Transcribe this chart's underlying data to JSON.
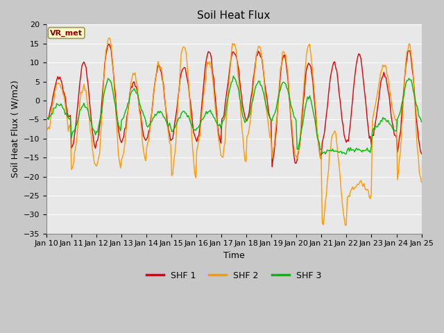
{
  "title": "Soil Heat Flux",
  "xlabel": "Time",
  "ylabel": "Soil Heat Flux ( W/m2)",
  "ylim": [
    -35,
    20
  ],
  "yticks": [
    -35,
    -30,
    -25,
    -20,
    -15,
    -10,
    -5,
    0,
    5,
    10,
    15,
    20
  ],
  "xtick_labels": [
    "Jan 10",
    "Jan 11",
    "Jan 12",
    "Jan 13",
    "Jan 14",
    "Jan 15",
    "Jan 16",
    "Jan 17",
    "Jan 18",
    "Jan 19",
    "Jan 20",
    "Jan 21",
    "Jan 22",
    "Jan 23",
    "Jan 24",
    "Jan 25"
  ],
  "series_colors": [
    "#dd0000",
    "#ff9900",
    "#00bb00"
  ],
  "series_labels": [
    "SHF 1",
    "SHF 2",
    "SHF 3"
  ],
  "vr_met_text": "VR_met",
  "vr_met_color": "#8B0000",
  "vr_met_bg": "#ffffcc",
  "vr_met_edge": "#999944",
  "fig_bg": "#c8c8c8",
  "plot_bg": "#e8e8e8",
  "grid_color": "#ffffff",
  "linewidth": 1.0,
  "title_fontsize": 11,
  "label_fontsize": 9,
  "tick_fontsize": 8,
  "legend_fontsize": 9
}
